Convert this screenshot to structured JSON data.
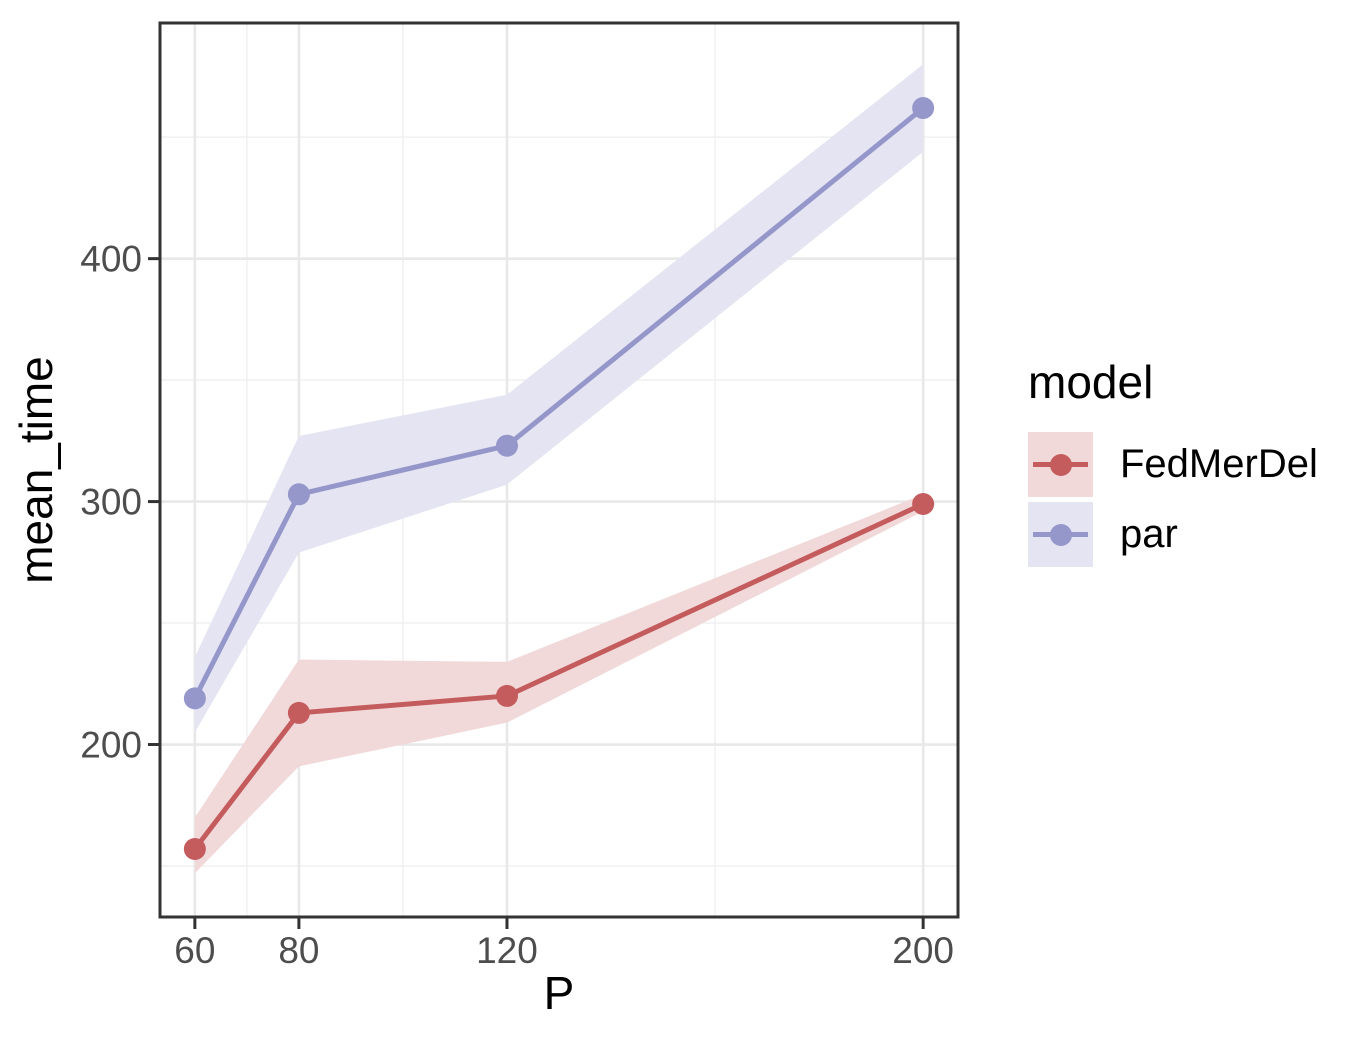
{
  "figure": {
    "background": "#FFFFFF"
  },
  "chart_data": {
    "type": "line",
    "title": "",
    "xlabel": "P",
    "ylabel": "mean_time",
    "x": [
      60,
      80,
      120,
      200
    ],
    "x_ticks": [
      60,
      80,
      120,
      200
    ],
    "x_tick_labels": [
      "60",
      "80",
      "120",
      "200"
    ],
    "x_minor": [
      70,
      100,
      160
    ],
    "y_ticks": [
      200,
      300,
      400
    ],
    "y_tick_labels": [
      "200",
      "300",
      "400"
    ],
    "y_minor": [
      150,
      250,
      350,
      450
    ],
    "xlim": [
      53.3,
      206.7
    ],
    "ylim": [
      129,
      497
    ],
    "grid": true,
    "legend": {
      "title": "model",
      "position": "right"
    },
    "series": [
      {
        "name": "FedMerDel",
        "color": "#C45C5E",
        "ribbon_color": "#F1D9DA",
        "values": [
          157,
          213,
          220,
          299
        ],
        "ribbon_low": [
          147,
          191,
          209,
          296
        ],
        "ribbon_high": [
          170,
          235,
          234,
          303
        ]
      },
      {
        "name": "par",
        "color": "#9596C9",
        "ribbon_color": "#E4E4F2",
        "values": [
          219,
          303,
          323,
          462
        ],
        "ribbon_low": [
          205,
          279,
          307,
          444
        ],
        "ribbon_high": [
          236,
          327,
          344,
          480
        ]
      }
    ],
    "style": {
      "panel_bg": "#FFFFFF",
      "grid_major": "#E8E8E8",
      "grid_minor": "#F0F0F0",
      "border": "#333333",
      "tick_text": "#4D4D4D"
    }
  }
}
